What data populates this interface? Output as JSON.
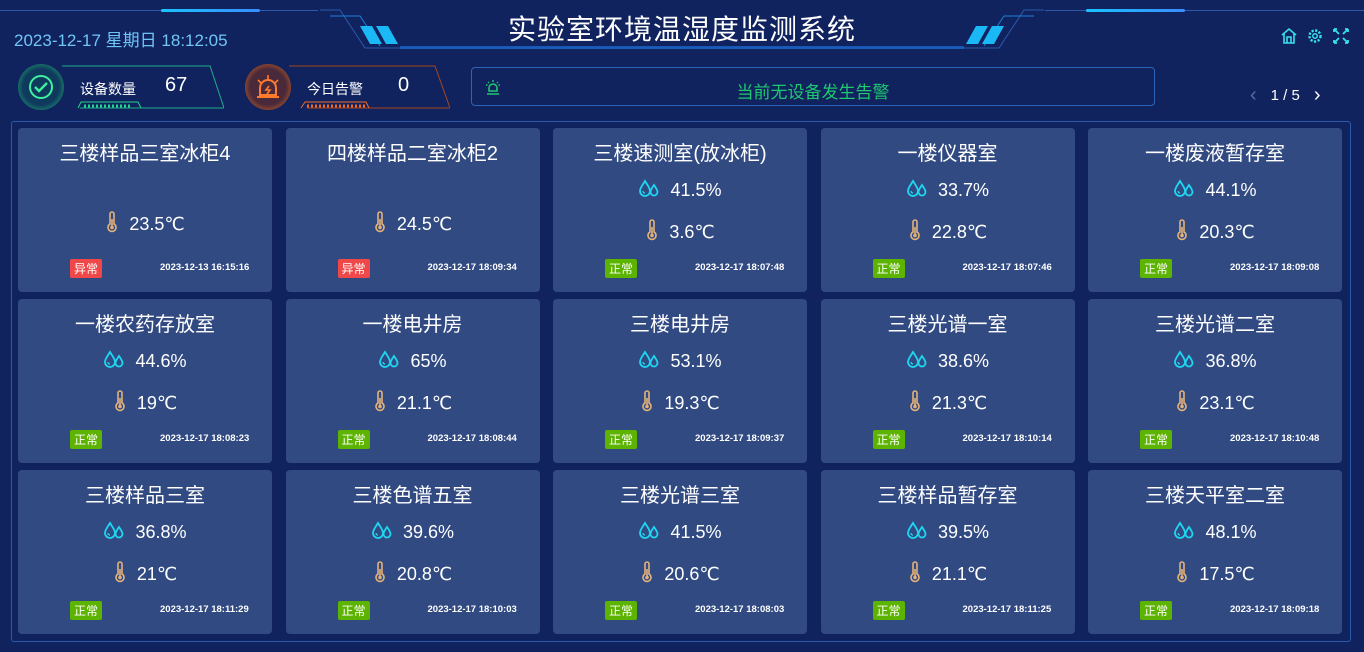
{
  "header": {
    "title": "实验室环境温湿度监测系统",
    "datetime": "2023-12-17 星期日 18:12:05",
    "icons": [
      "home-icon",
      "settings-icon",
      "fullscreen-icon"
    ]
  },
  "stats": {
    "devices": {
      "label": "设备数量",
      "value": "67",
      "color": "#22d38a"
    },
    "alarms": {
      "label": "今日告警",
      "value": "0",
      "color": "#f26b22"
    }
  },
  "alarm_bar": {
    "text": "当前无设备发生告警",
    "color": "#1ec770"
  },
  "pager": {
    "text": "1 / 5"
  },
  "colors": {
    "normal": "#5cb300",
    "abnormal": "#f04848",
    "humidity_icon": "#1fd6f0",
    "temp_icon": "#e3b27a"
  },
  "cards": [
    {
      "name": "三楼样品三室冰柜4",
      "humidity": null,
      "temp": "23.5℃",
      "status": "异常",
      "abnormal": true,
      "time": "2023-12-13 16:15:16"
    },
    {
      "name": "四楼样品二室冰柜2",
      "humidity": null,
      "temp": "24.5℃",
      "status": "异常",
      "abnormal": true,
      "time": "2023-12-17 18:09:34"
    },
    {
      "name": "三楼速测室(放冰柜)",
      "humidity": "41.5%",
      "temp": "3.6℃",
      "status": "正常",
      "abnormal": false,
      "time": "2023-12-17 18:07:48"
    },
    {
      "name": "一楼仪器室",
      "humidity": "33.7%",
      "temp": "22.8℃",
      "status": "正常",
      "abnormal": false,
      "time": "2023-12-17 18:07:46"
    },
    {
      "name": "一楼废液暂存室",
      "humidity": "44.1%",
      "temp": "20.3℃",
      "status": "正常",
      "abnormal": false,
      "time": "2023-12-17 18:09:08"
    },
    {
      "name": "一楼农药存放室",
      "humidity": "44.6%",
      "temp": "19℃",
      "status": "正常",
      "abnormal": false,
      "time": "2023-12-17 18:08:23"
    },
    {
      "name": "一楼电井房",
      "humidity": "65%",
      "temp": "21.1℃",
      "status": "正常",
      "abnormal": false,
      "time": "2023-12-17 18:08:44"
    },
    {
      "name": "三楼电井房",
      "humidity": "53.1%",
      "temp": "19.3℃",
      "status": "正常",
      "abnormal": false,
      "time": "2023-12-17 18:09:37"
    },
    {
      "name": "三楼光谱一室",
      "humidity": "38.6%",
      "temp": "21.3℃",
      "status": "正常",
      "abnormal": false,
      "time": "2023-12-17 18:10:14"
    },
    {
      "name": "三楼光谱二室",
      "humidity": "36.8%",
      "temp": "23.1℃",
      "status": "正常",
      "abnormal": false,
      "time": "2023-12-17 18:10:48"
    },
    {
      "name": "三楼样品三室",
      "humidity": "36.8%",
      "temp": "21℃",
      "status": "正常",
      "abnormal": false,
      "time": "2023-12-17 18:11:29"
    },
    {
      "name": "三楼色谱五室",
      "humidity": "39.6%",
      "temp": "20.8℃",
      "status": "正常",
      "abnormal": false,
      "time": "2023-12-17 18:10:03"
    },
    {
      "name": "三楼光谱三室",
      "humidity": "41.5%",
      "temp": "20.6℃",
      "status": "正常",
      "abnormal": false,
      "time": "2023-12-17 18:08:03"
    },
    {
      "name": "三楼样品暂存室",
      "humidity": "39.5%",
      "temp": "21.1℃",
      "status": "正常",
      "abnormal": false,
      "time": "2023-12-17 18:11:25"
    },
    {
      "name": "三楼天平室二室",
      "humidity": "48.1%",
      "temp": "17.5℃",
      "status": "正常",
      "abnormal": false,
      "time": "2023-12-17 18:09:18"
    }
  ]
}
